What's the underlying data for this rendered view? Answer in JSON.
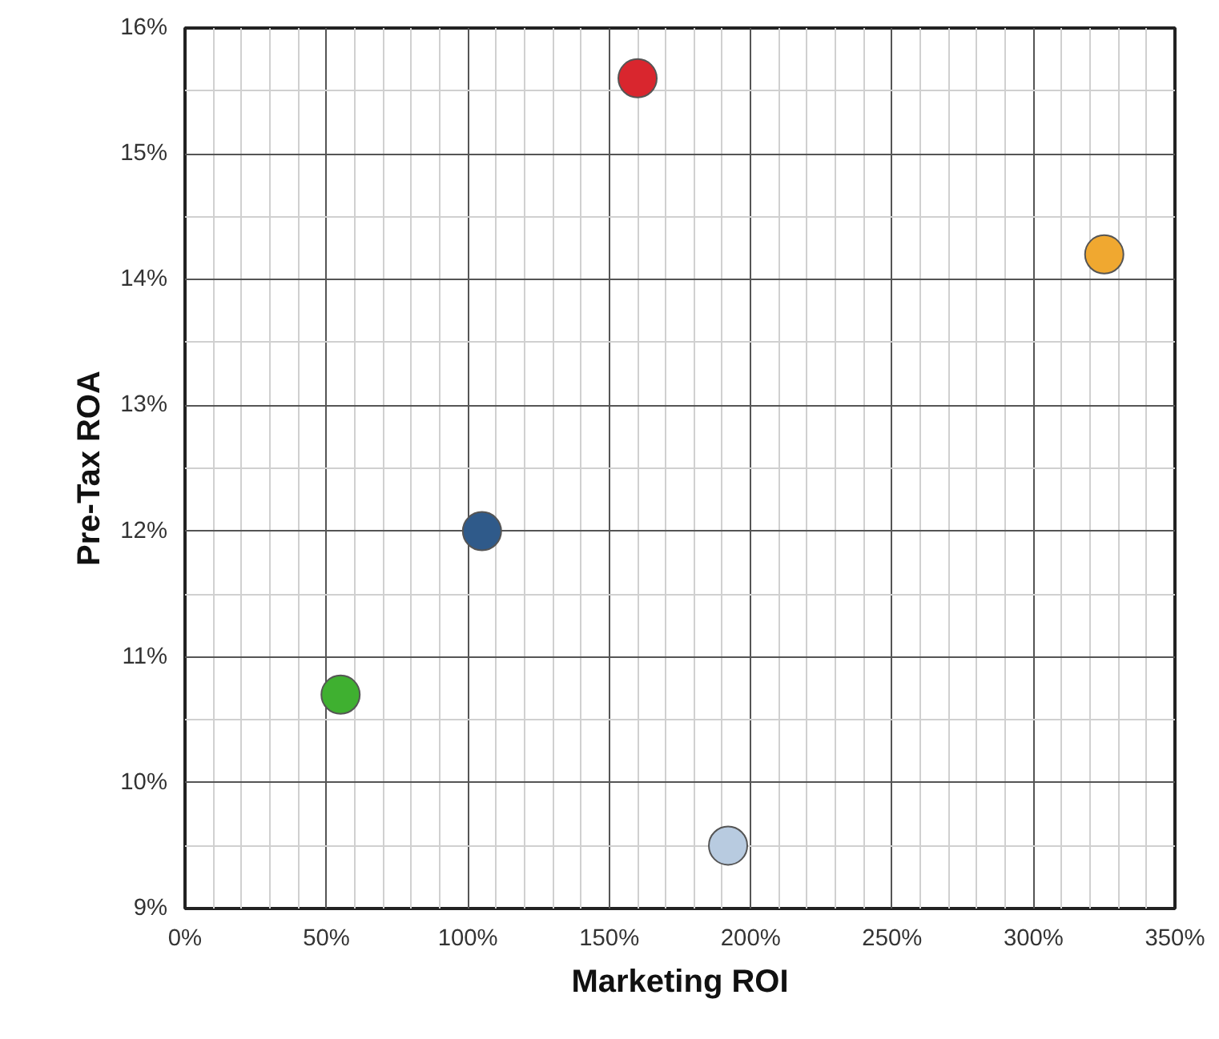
{
  "chart_data": {
    "type": "scatter",
    "xlabel": "Marketing ROI",
    "ylabel": "Pre-Tax ROA",
    "x": [
      160,
      325,
      105,
      55,
      192
    ],
    "values": [
      15.6,
      14.2,
      12.0,
      10.7,
      9.5
    ],
    "colors": [
      "#d9262e",
      "#f0a830",
      "#2f5a8a",
      "#3fb030",
      "#b8cbe0"
    ],
    "xlim": [
      0,
      350
    ],
    "xticks": [
      {
        "value": 0,
        "label": "0%"
      },
      {
        "value": 50,
        "label": "50%"
      },
      {
        "value": 100,
        "label": "100%"
      },
      {
        "value": 150,
        "label": "150%"
      },
      {
        "value": 200,
        "label": "200%"
      },
      {
        "value": 250,
        "label": "250%"
      },
      {
        "value": 300,
        "label": "300%"
      },
      {
        "value": 350,
        "label": "350%"
      }
    ],
    "ylim": [
      9,
      16
    ],
    "yticks": [
      {
        "value": 9,
        "label": "9%"
      },
      {
        "value": 10,
        "label": "10%"
      },
      {
        "value": 11,
        "label": "11%"
      },
      {
        "value": 12,
        "label": "12%"
      },
      {
        "value": 13,
        "label": "13%"
      },
      {
        "value": 14,
        "label": "14%"
      },
      {
        "value": 15,
        "label": "15%"
      },
      {
        "value": 16,
        "label": "16%"
      }
    ],
    "grid": true,
    "marker": "circle"
  }
}
